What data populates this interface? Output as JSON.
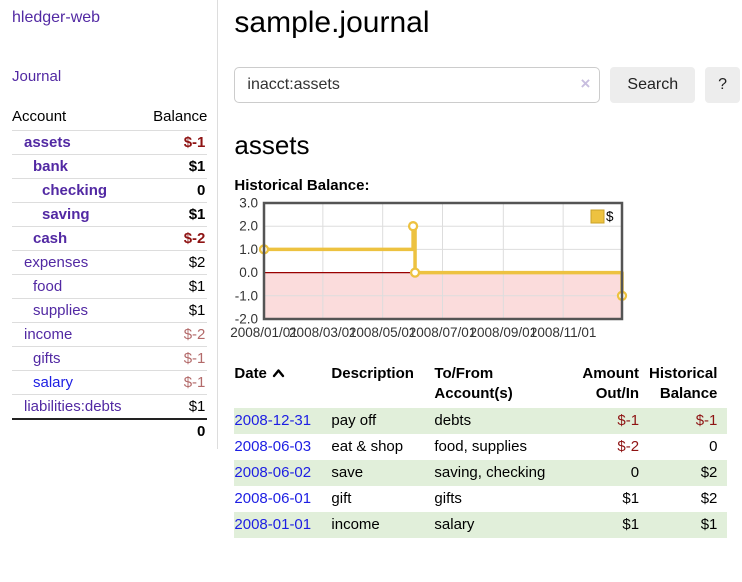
{
  "sidebar": {
    "app_title": "hledger-web",
    "nav": {
      "journal_label": "Journal"
    },
    "accounts_table": {
      "headers": {
        "account": "Account",
        "balance": "Balance"
      },
      "rows": [
        {
          "name": "assets",
          "indent": 1,
          "bold": true,
          "balance": "$-1",
          "tone": "neg",
          "link": "purple"
        },
        {
          "name": "bank",
          "indent": 2,
          "bold": true,
          "balance": "$1",
          "tone": "",
          "link": "purple"
        },
        {
          "name": "checking",
          "indent": 3,
          "bold": true,
          "balance": "0",
          "tone": "",
          "link": "purple"
        },
        {
          "name": "saving",
          "indent": 3,
          "bold": true,
          "balance": "$1",
          "tone": "",
          "link": "purple"
        },
        {
          "name": "cash",
          "indent": 2,
          "bold": true,
          "balance": "$-2",
          "tone": "neg",
          "link": "purple"
        },
        {
          "name": "expenses",
          "indent": 1,
          "bold": false,
          "balance": "$2",
          "tone": "",
          "link": "purple"
        },
        {
          "name": "food",
          "indent": 2,
          "bold": false,
          "balance": "$1",
          "tone": "",
          "link": "purple"
        },
        {
          "name": "supplies",
          "indent": 2,
          "bold": false,
          "balance": "$1",
          "tone": "",
          "link": "purple"
        },
        {
          "name": "income",
          "indent": 1,
          "bold": false,
          "balance": "$-2",
          "tone": "negmuted",
          "link": "purple"
        },
        {
          "name": "gifts",
          "indent": 2,
          "bold": false,
          "balance": "$-1",
          "tone": "negmuted",
          "link": "purple"
        },
        {
          "name": "salary",
          "indent": 2,
          "bold": false,
          "balance": "$-1",
          "tone": "negmuted",
          "link": "blue"
        },
        {
          "name": "liabilities:debts",
          "indent": 1,
          "bold": false,
          "balance": "$1",
          "tone": "",
          "link": "purple"
        }
      ],
      "total": "0"
    }
  },
  "main": {
    "title": "sample.journal",
    "search": {
      "value": "inacct:assets",
      "clear_icon": "×",
      "button_label": "Search",
      "help_label": "?"
    },
    "account_heading": "assets",
    "chart_label": "Historical Balance:",
    "register_table": {
      "headers": {
        "date": "Date",
        "description": "Description",
        "accounts": "To/From Account(s)",
        "amount": "Amount Out/In",
        "balance": "Historical Balance"
      },
      "rows": [
        {
          "date": "2008-12-31",
          "description": "pay off",
          "accounts": "debts",
          "amount": "$-1",
          "amount_tone": "neg",
          "balance": "$-1",
          "balance_tone": "neg",
          "shaded": true
        },
        {
          "date": "2008-06-03",
          "description": "eat & shop",
          "accounts": "food, supplies",
          "amount": "$-2",
          "amount_tone": "neg",
          "balance": "0",
          "balance_tone": "",
          "shaded": false
        },
        {
          "date": "2008-06-02",
          "description": "save",
          "accounts": "saving, checking",
          "amount": "0",
          "amount_tone": "",
          "balance": "$2",
          "balance_tone": "",
          "shaded": true
        },
        {
          "date": "2008-06-01",
          "description": "gift",
          "accounts": "gifts",
          "amount": "$1",
          "amount_tone": "",
          "balance": "$2",
          "balance_tone": "",
          "shaded": false
        },
        {
          "date": "2008-01-01",
          "description": "income",
          "accounts": "salary",
          "amount": "$1",
          "amount_tone": "",
          "balance": "$1",
          "balance_tone": "",
          "shaded": true
        }
      ]
    }
  },
  "chart_data": {
    "type": "line",
    "title": "Historical Balance:",
    "step": true,
    "x_domain": [
      "2008-01-01",
      "2008-12-31"
    ],
    "x_ticks": [
      "2008/01/01",
      "2008/03/01",
      "2008/05/01",
      "2008/07/01",
      "2008/09/01",
      "2008/11/01"
    ],
    "y_ticks": [
      "3.0",
      "2.0",
      "1.0",
      "0.0",
      "-1.0",
      "-2.0"
    ],
    "ylim": [
      -2,
      3
    ],
    "grid": true,
    "legend_position": "top-right",
    "series": [
      {
        "name": "$",
        "color": "#edc240",
        "points": [
          {
            "date": "2008-01-01",
            "value": 1
          },
          {
            "date": "2008-06-01",
            "value": 2
          },
          {
            "date": "2008-06-03",
            "value": 0
          },
          {
            "date": "2008-12-31",
            "value": -1
          }
        ]
      }
    ],
    "colors": {
      "negative_region": "#fbdcdc",
      "zero_line": "#990000",
      "gridline": "#dddddd",
      "plot_border": "#545454",
      "tick_text": "#333333"
    }
  }
}
